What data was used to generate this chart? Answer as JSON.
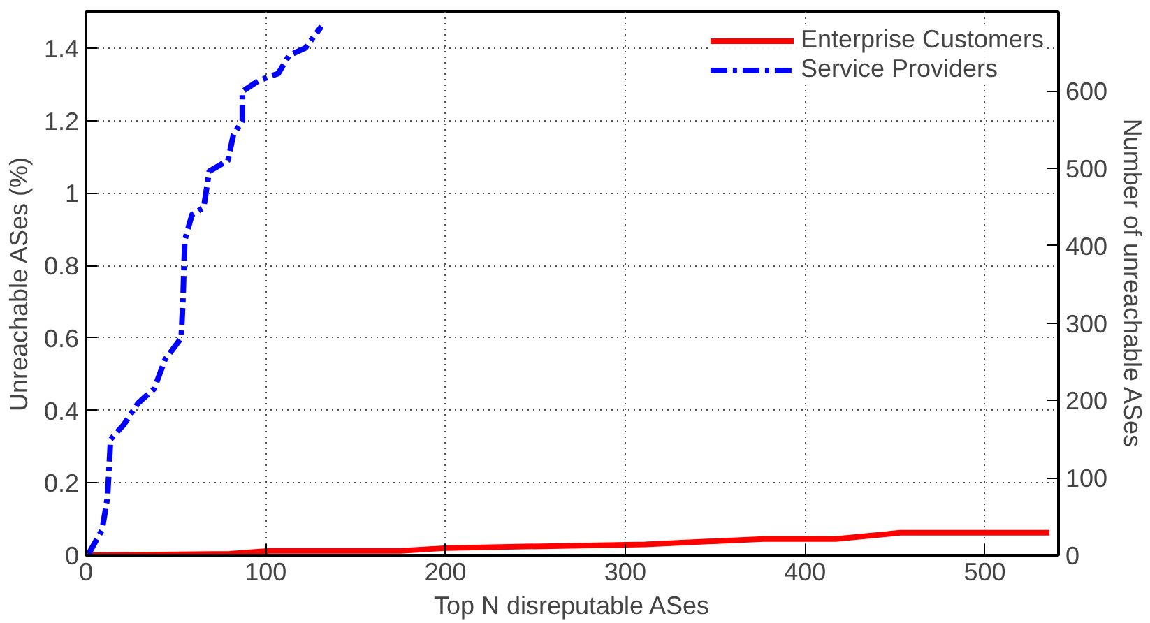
{
  "chart_data": {
    "type": "line",
    "xlabel": "Top N disreputable ASes",
    "ylabel": "Unreachable ASes (%)",
    "y2label": "Number of unreachable ASes",
    "series": [
      {
        "name": "Enterprise Customers",
        "color": "#ff0000",
        "line_style": "solid",
        "x": [
          0,
          80,
          102,
          175,
          201,
          311,
          377,
          417,
          453,
          536
        ],
        "values": [
          0,
          0.004,
          0.012,
          0.012,
          0.02,
          0.03,
          0.045,
          0.045,
          0.062,
          0.062
        ]
      },
      {
        "name": "Service Providers",
        "color": "#0000ff",
        "line_style": "dashdot",
        "x": [
          1.5,
          9,
          12,
          13.7,
          21,
          29,
          38,
          44,
          53,
          54,
          55,
          59,
          65.5,
          68.6,
          79,
          82,
          87,
          87,
          96,
          107,
          113,
          122,
          131
        ],
        "values": [
          0.004,
          0.07,
          0.16,
          0.32,
          0.36,
          0.42,
          0.46,
          0.54,
          0.6,
          0.71,
          0.87,
          0.94,
          0.96,
          1.06,
          1.09,
          1.16,
          1.2,
          1.28,
          1.31,
          1.33,
          1.38,
          1.4,
          1.46
        ]
      }
    ],
    "xlim": [
      0,
      541
    ],
    "xticks": [
      0,
      100,
      200,
      300,
      400,
      500
    ],
    "ylim": [
      0,
      1.5
    ],
    "yticks": [
      0,
      0.2,
      0.4,
      0.6,
      0.8,
      1,
      1.2,
      1.4
    ],
    "y2lim": [
      0,
      702
    ],
    "y2ticks": [
      0,
      100,
      200,
      300,
      400,
      500,
      600
    ],
    "grid": true,
    "legend": "top right",
    "marker": "none"
  }
}
